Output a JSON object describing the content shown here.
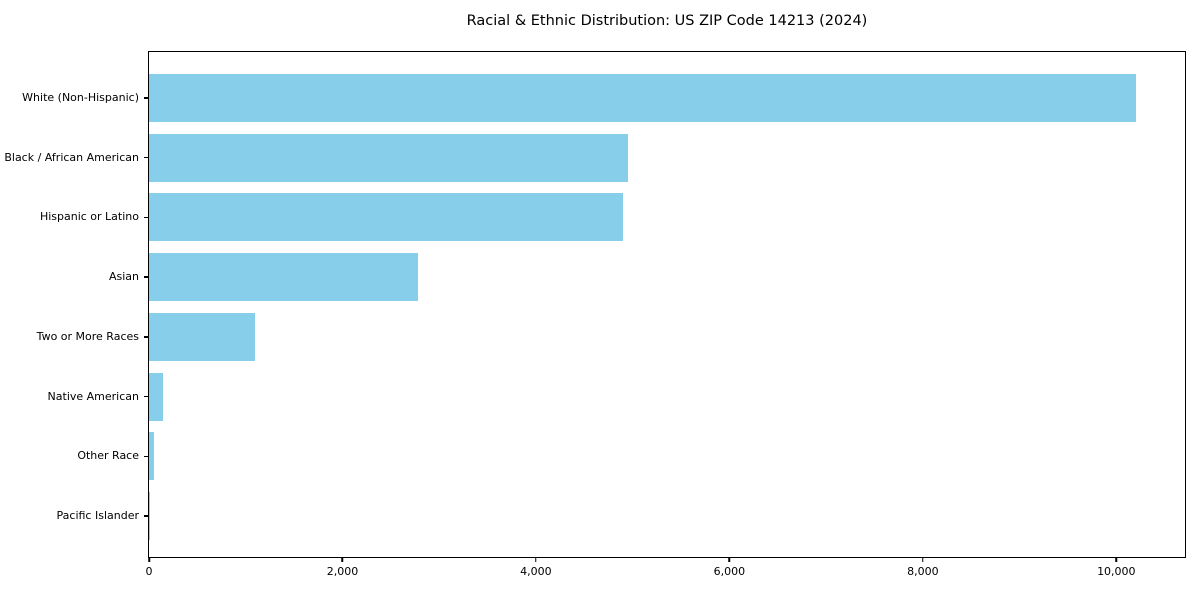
{
  "chart_data": {
    "type": "bar",
    "orientation": "horizontal",
    "title": "Racial & Ethnic Distribution: US ZIP Code 14213 (2024)",
    "categories": [
      "White (Non-Hispanic)",
      "Black / African American",
      "Hispanic or Latino",
      "Asian",
      "Two or More Races",
      "Native American",
      "Other Race",
      "Pacific Islander"
    ],
    "values": [
      10200,
      4950,
      4900,
      2780,
      1100,
      145,
      50,
      10
    ],
    "xlabel": "",
    "ylabel": "",
    "xlim": [
      0,
      10710
    ],
    "xticks": [
      0,
      2000,
      4000,
      6000,
      8000,
      10000
    ],
    "xtick_labels": [
      "0",
      "2,000",
      "4,000",
      "6,000",
      "8,000",
      "10,000"
    ],
    "grid": false,
    "legend_position": "none",
    "bar_color": "#87CEEB",
    "background_color": "#ffffff",
    "text_color": "#000000"
  }
}
